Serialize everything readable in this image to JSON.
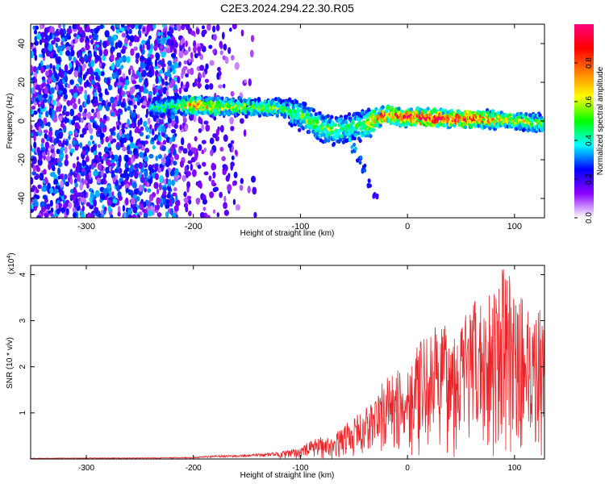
{
  "figure": {
    "title": "C2E3.2024.294.22.30.R05"
  },
  "chart_data": [
    {
      "type": "heatmap",
      "title": "C2E3.2024.294.22.30.R05",
      "xlabel": "Height of straight line (km)",
      "ylabel": "Frequency (Hz)",
      "xlim": [
        -352,
        128
      ],
      "ylim": [
        -50,
        50
      ],
      "xticks": [
        -300,
        -200,
        -100,
        0,
        100
      ],
      "yticks": [
        -40,
        -20,
        0,
        20,
        40
      ],
      "colorbar": {
        "label": "Normalized spectral amplitude",
        "range": [
          0,
          1
        ],
        "ticks": [
          "0.0",
          "0.2",
          "0.4",
          "0.6",
          "0.8"
        ],
        "colors": [
          "#ffffff",
          "#8b00ff",
          "#0000ff",
          "#00ffff",
          "#00ff00",
          "#ffff00",
          "#ff8000",
          "#ff0000",
          "#ff0080"
        ]
      },
      "ridge": {
        "x": [
          -240,
          -220,
          -200,
          -180,
          -160,
          -140,
          -120,
          -110,
          -100,
          -90,
          -80,
          -70,
          -60,
          -50,
          -40,
          -30,
          -20,
          0,
          20,
          40,
          60,
          80,
          100,
          120,
          128
        ],
        "y": [
          7,
          7.5,
          8,
          7.5,
          7,
          7,
          7,
          5,
          3,
          0,
          -3,
          -5,
          -4,
          -3,
          -2,
          1,
          3,
          2,
          1.5,
          1.5,
          1.5,
          0.5,
          0,
          -1,
          -1
        ],
        "amp": [
          0.35,
          0.4,
          0.75,
          0.6,
          0.55,
          0.5,
          0.5,
          0.4,
          0.45,
          0.5,
          0.45,
          0.5,
          0.45,
          0.4,
          0.5,
          0.7,
          0.85,
          0.9,
          0.95,
          0.95,
          0.9,
          0.7,
          0.6,
          0.55,
          0.5
        ]
      },
      "branch": {
        "x": [
          -55,
          -50,
          -45,
          -40,
          -35,
          -30
        ],
        "y": [
          -8,
          -14,
          -20,
          -25,
          -32,
          -38
        ],
        "amp": [
          0.3,
          0.25,
          0.2,
          0.2,
          0.15,
          0.1
        ]
      },
      "noise_region_x": [
        -352,
        -140
      ]
    },
    {
      "type": "line",
      "xlabel": "Height of straight line (km)",
      "ylabel": "SNR (10 * v/v)",
      "y_multiplier": "(x10^4)",
      "xlim": [
        -352,
        128
      ],
      "ylim": [
        0,
        4.2
      ],
      "xticks": [
        -300,
        -200,
        -100,
        0,
        100
      ],
      "yticks": [
        1,
        2,
        3,
        4
      ],
      "color": "#e8262a",
      "envelope": {
        "x": [
          -352,
          -250,
          -200,
          -180,
          -150,
          -120,
          -100,
          -90,
          -80,
          -70,
          -60,
          -50,
          -40,
          -30,
          -20,
          -10,
          0,
          10,
          20,
          30,
          40,
          50,
          60,
          70,
          80,
          90,
          95,
          100,
          110,
          120,
          128
        ],
        "y": [
          0.02,
          0.03,
          0.04,
          0.08,
          0.1,
          0.15,
          0.25,
          0.4,
          0.5,
          0.45,
          0.75,
          0.9,
          1.1,
          1.4,
          1.8,
          1.9,
          2.1,
          2.5,
          2.7,
          3.0,
          2.8,
          3.1,
          3.4,
          3.5,
          3.8,
          4.2,
          4.0,
          3.6,
          3.5,
          3.3,
          3.2
        ]
      }
    }
  ]
}
